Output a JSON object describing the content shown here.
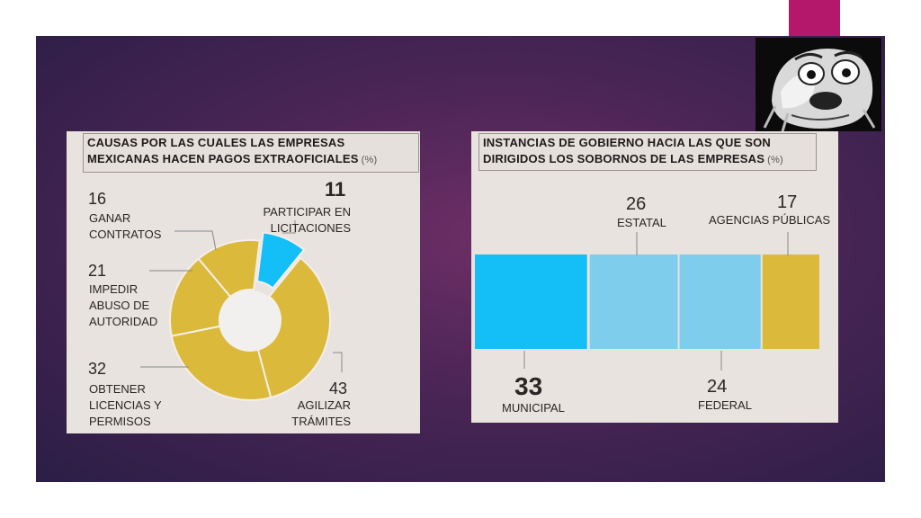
{
  "colors": {
    "gold": "#dbb93b",
    "cyan": "#14bff8",
    "light_blue": "#7fcdec",
    "panel_bg": "#e9e3df",
    "accent_tab": "#b3186b"
  },
  "meme": {
    "icon": "shocked-face-meme"
  },
  "chart_data": [
    {
      "type": "pie",
      "title_line1": "CAUSAS POR LAS CUALES LAS EMPRESAS",
      "title_line2": "MEXICANAS HACEN PAGOS EXTRAOFICIALES",
      "unit": "(%)",
      "slices": [
        {
          "value": 11,
          "value_label": "11",
          "label_lines": [
            "PARTICIPAR EN",
            "LICITACIONES"
          ],
          "color": "#14bff8"
        },
        {
          "value": 43,
          "value_label": "43",
          "label_lines": [
            "AGILIZAR",
            "TRÁMITES"
          ],
          "color": "#dbb93b"
        },
        {
          "value": 32,
          "value_label": "32",
          "label_lines": [
            "OBTENER",
            "LICENCIAS Y",
            "PERMISOS"
          ],
          "color": "#dbb93b"
        },
        {
          "value": 21,
          "value_label": "21",
          "label_lines": [
            "IMPEDIR",
            "ABUSO DE",
            "AUTORIDAD"
          ],
          "color": "#dbb93b"
        },
        {
          "value": 16,
          "value_label": "16",
          "label_lines": [
            "GANAR",
            "CONTRATOS"
          ],
          "color": "#dbb93b"
        }
      ]
    },
    {
      "type": "bar",
      "orientation": "stacked-horizontal",
      "title_line1": "INSTANCIAS DE GOBIERNO HACIA LAS QUE SON",
      "title_line2": "DIRIGIDOS LOS SOBORNOS DE LAS EMPRESAS",
      "unit": "(%)",
      "segments": [
        {
          "label": "MUNICIPAL",
          "value": 33,
          "value_label": "33",
          "color": "#14bff8"
        },
        {
          "label": "ESTATAL",
          "value": 26,
          "value_label": "26",
          "color": "#7fcdec"
        },
        {
          "label": "FEDERAL",
          "value": 24,
          "value_label": "24",
          "color": "#7fcdec"
        },
        {
          "label": "AGENCIAS PÚBLICAS",
          "value": 17,
          "value_label": "17",
          "color": "#dbb93b"
        }
      ]
    }
  ]
}
